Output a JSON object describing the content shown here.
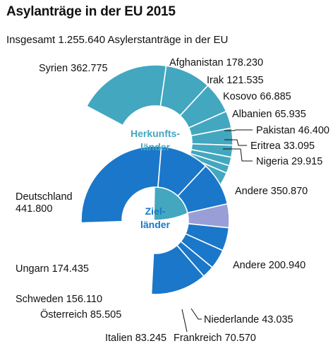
{
  "chart_data": {
    "type": "donut",
    "title": "Asylanträge in der EU 2015",
    "subtitle": "Insgesamt 1.255.640 Asylerstanträge in der EU",
    "units": "Asylerstanträge",
    "colors": {
      "herkunft": "#43a7c0",
      "ziel": "#1a77c9",
      "oesterreich": "#9a9ed6",
      "separator": "#ffffff"
    },
    "rings": [
      {
        "name": "Herkunftsländer",
        "center_label_lines": [
          "Herkunfts-",
          "länder"
        ],
        "slices": [
          {
            "label": "Syrien",
            "value": 362775,
            "value_text": "362.775"
          },
          {
            "label": "Afghanistan",
            "value": 178230,
            "value_text": "178.230"
          },
          {
            "label": "Irak",
            "value": 121535,
            "value_text": "121.535"
          },
          {
            "label": "Kosovo",
            "value": 66885,
            "value_text": "66.885"
          },
          {
            "label": "Albanien",
            "value": 65935,
            "value_text": "65.935"
          },
          {
            "label": "Pakistan",
            "value": 46400,
            "value_text": "46.400"
          },
          {
            "label": "Eritrea",
            "value": 33095,
            "value_text": "33.095"
          },
          {
            "label": "Nigeria",
            "value": 29915,
            "value_text": "29.915"
          },
          {
            "label": "Andere",
            "value": 350870,
            "value_text": "350.870"
          }
        ]
      },
      {
        "name": "Zielländer",
        "center_label_lines": [
          "Ziel-",
          "länder"
        ],
        "slices": [
          {
            "label": "Deutschland",
            "value": 441800,
            "value_text": "441.800"
          },
          {
            "label": "Ungarn",
            "value": 174435,
            "value_text": "174.435"
          },
          {
            "label": "Schweden",
            "value": 156110,
            "value_text": "156.110"
          },
          {
            "label": "Österreich",
            "value": 85505,
            "value_text": "85.505",
            "highlight": true
          },
          {
            "label": "Italien",
            "value": 83245,
            "value_text": "83.245"
          },
          {
            "label": "Frankreich",
            "value": 70570,
            "value_text": "70.570"
          },
          {
            "label": "Niederlande",
            "value": 43035,
            "value_text": "43.035"
          },
          {
            "label": "Andere",
            "value": 200940,
            "value_text": "200.940"
          }
        ]
      }
    ]
  }
}
